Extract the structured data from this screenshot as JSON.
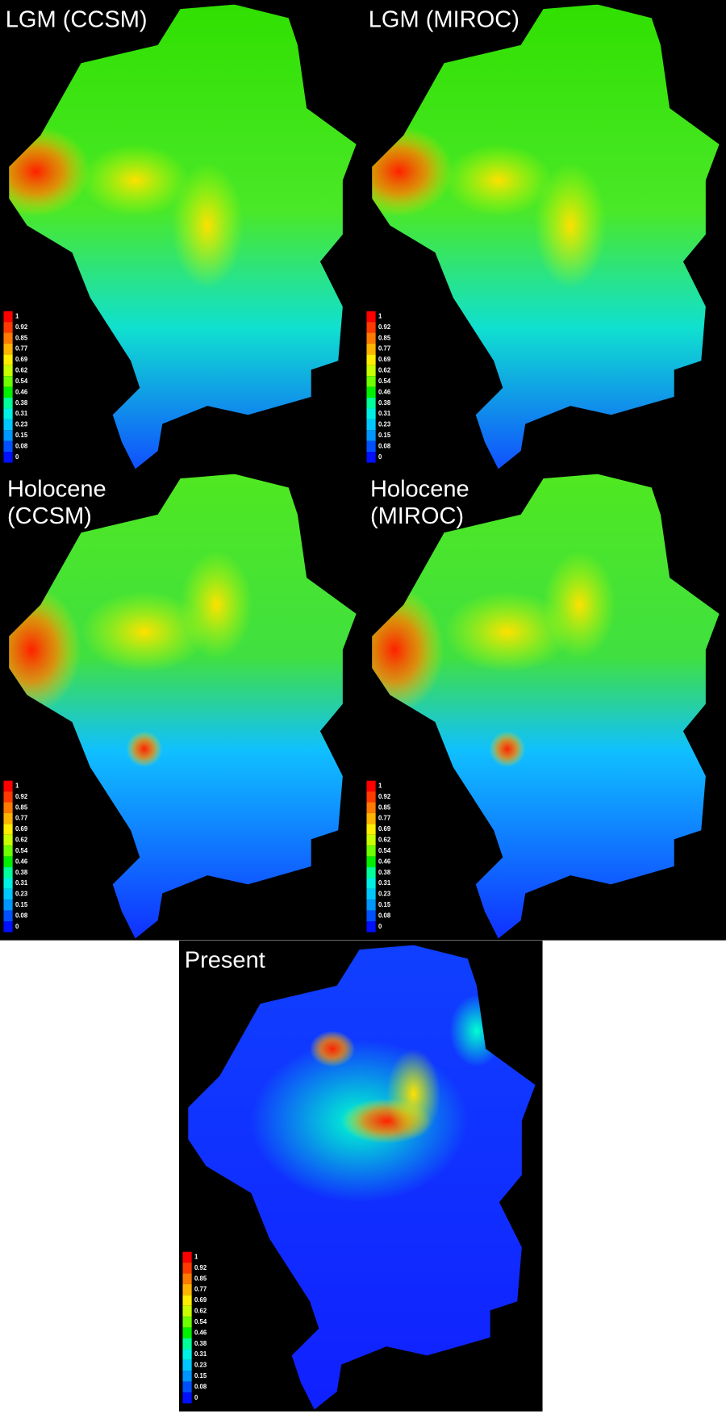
{
  "panels": [
    {
      "title": [
        "LGM (CCSM)"
      ]
    },
    {
      "title": [
        "LGM (MIROC)"
      ]
    },
    {
      "title": [
        "Holocene",
        "(CCSM)"
      ]
    },
    {
      "title": [
        "Holocene",
        "(MIROC)"
      ]
    },
    {
      "title": [
        "Present"
      ]
    }
  ],
  "legend": {
    "labels": [
      1,
      0.92,
      0.85,
      0.77,
      0.69,
      0.62,
      0.54,
      0.46,
      0.38,
      0.31,
      0.23,
      0.15,
      0.08,
      0
    ],
    "colors": [
      "#ff0000",
      "#ff3a00",
      "#ff7a00",
      "#ffb400",
      "#ffee00",
      "#c8ff00",
      "#6eff00",
      "#00f000",
      "#00ff9a",
      "#00f0e6",
      "#00c8ff",
      "#0096ff",
      "#0050ff",
      "#0010ff"
    ]
  }
}
